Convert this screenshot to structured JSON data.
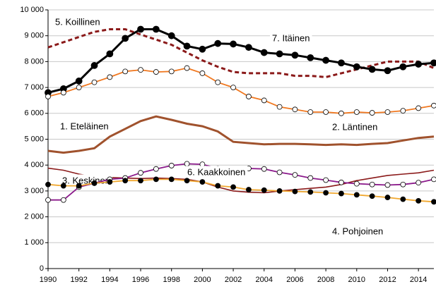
{
  "chart_data": {
    "type": "line",
    "x": [
      1990,
      1991,
      1992,
      1993,
      1994,
      1995,
      1996,
      1997,
      1998,
      1999,
      2000,
      2001,
      2002,
      2003,
      2004,
      2005,
      2006,
      2007,
      2008,
      2009,
      2010,
      2011,
      2012,
      2013,
      2014,
      2015
    ],
    "xlim": [
      1990,
      2015
    ],
    "xticks": [
      1990,
      1992,
      1994,
      1996,
      1998,
      2000,
      2002,
      2004,
      2006,
      2008,
      2010,
      2012,
      2014
    ],
    "ylim": [
      0,
      10000
    ],
    "yticks": [
      0,
      {
        "value": 1000,
        "label": "1 000"
      },
      {
        "value": 2000,
        "label": "2 000"
      },
      {
        "value": 3000,
        "label": "3 000"
      },
      {
        "value": 4000,
        "label": "4 000"
      },
      {
        "value": 5000,
        "label": "5 000"
      },
      {
        "value": 6000,
        "label": "6 000"
      },
      {
        "value": 7000,
        "label": "7 000"
      },
      {
        "value": 8000,
        "label": "8 000"
      },
      {
        "value": 9000,
        "label": "9 000"
      },
      {
        "value": 10000,
        "label": "10 000"
      }
    ],
    "grid": true,
    "series": [
      {
        "name": "5. Koillinen",
        "color": "#8b1a1a",
        "dashed": true,
        "marker": "none",
        "values": [
          8550,
          8750,
          8950,
          9150,
          9250,
          9250,
          9050,
          8850,
          8650,
          8350,
          8050,
          7800,
          7600,
          7550,
          7550,
          7550,
          7450,
          7450,
          7400,
          7550,
          7700,
          7850,
          8000,
          8000,
          8000,
          7750
        ]
      },
      {
        "name": "7. Itäinen",
        "color": "#000000",
        "dashed": false,
        "marker": "filled",
        "values": [
          6800,
          6950,
          7250,
          7850,
          8300,
          8900,
          9250,
          9250,
          9000,
          8600,
          8480,
          8700,
          8680,
          8550,
          8350,
          8300,
          8250,
          8150,
          8050,
          7950,
          7800,
          7700,
          7650,
          7800,
          7900,
          7950
        ]
      },
      {
        "name": "1. Eteläinen",
        "color": "#a0522d",
        "dashed": false,
        "marker": "none",
        "values": [
          4550,
          4480,
          4550,
          4650,
          5100,
          5400,
          5700,
          5880,
          5750,
          5600,
          5500,
          5300,
          4900,
          4850,
          4800,
          4820,
          4820,
          4800,
          4780,
          4800,
          4780,
          4820,
          4850,
          4950,
          5050,
          5100
        ]
      },
      {
        "name": "2. Läntinen",
        "color": "#f07820",
        "dashed": false,
        "marker": "open",
        "values": [
          6650,
          6800,
          7000,
          7200,
          7400,
          7620,
          7680,
          7600,
          7620,
          7750,
          7550,
          7200,
          7000,
          6650,
          6500,
          6250,
          6150,
          6050,
          6050,
          6000,
          6050,
          6020,
          6050,
          6100,
          6200,
          6300
        ]
      },
      {
        "name": "3. Keskinen",
        "color": "#8b1a1a",
        "dashed": false,
        "marker": "none",
        "values": [
          3880,
          3800,
          3650,
          3550,
          3520,
          3500,
          3480,
          3500,
          3480,
          3450,
          3350,
          3150,
          3000,
          2950,
          2930,
          3000,
          3050,
          3100,
          3150,
          3250,
          3400,
          3500,
          3600,
          3650,
          3700,
          3800
        ]
      },
      {
        "name": "6. Kaakkoinen",
        "color": "#8b1a8b",
        "dashed": false,
        "marker": "open",
        "values": [
          2650,
          2650,
          3150,
          3300,
          3450,
          3500,
          3700,
          3850,
          3980,
          4050,
          4030,
          3870,
          3850,
          3870,
          3850,
          3720,
          3620,
          3500,
          3420,
          3330,
          3280,
          3250,
          3230,
          3250,
          3320,
          3450
        ]
      },
      {
        "name": "4. Pohjoinen",
        "color": "#f0a830",
        "dashed": false,
        "marker": "filled",
        "values": [
          3250,
          3200,
          3200,
          3300,
          3350,
          3400,
          3400,
          3450,
          3450,
          3400,
          3350,
          3200,
          3150,
          3050,
          3030,
          3000,
          2980,
          2960,
          2930,
          2900,
          2850,
          2800,
          2750,
          2680,
          2620,
          2580
        ]
      }
    ]
  }
}
